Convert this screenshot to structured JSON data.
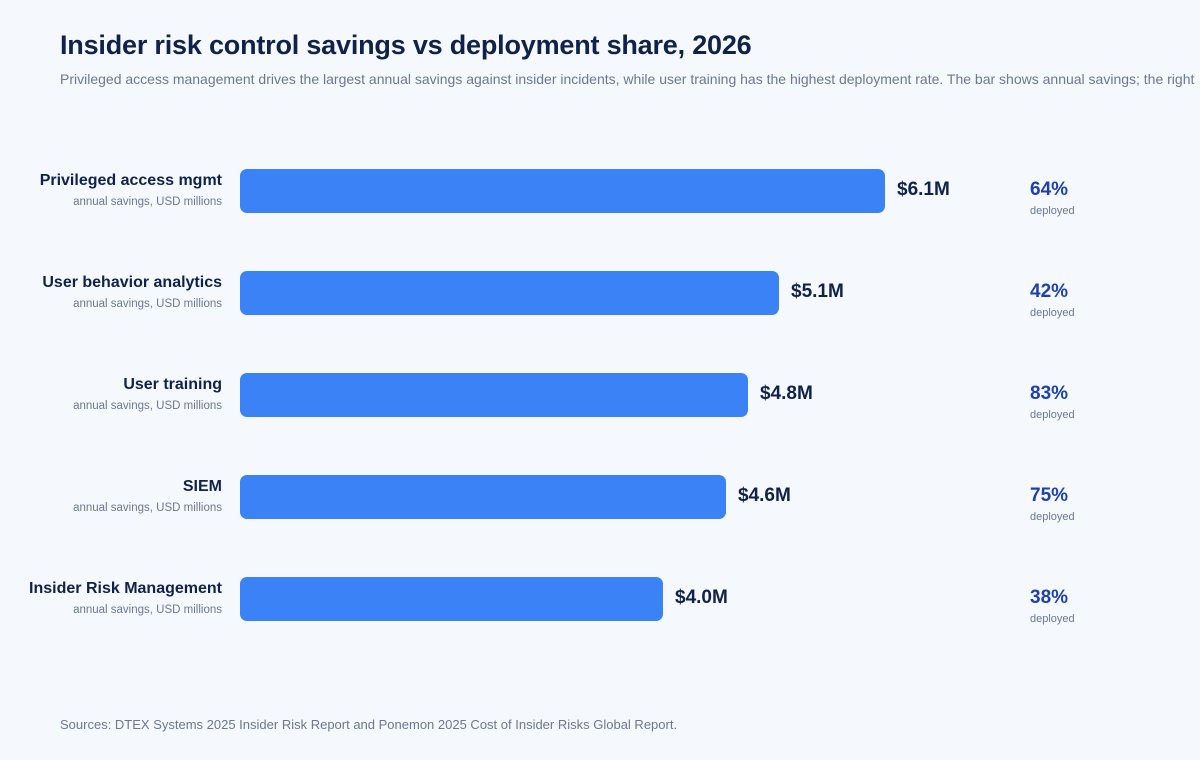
{
  "header": {
    "title": "Insider risk control savings vs deployment share, 2026",
    "subtitle": "Privileged access management drives the largest annual savings against insider incidents, while user training has the highest deployment rate. The bar shows annual savings; the right"
  },
  "footer": {
    "source": "Sources: DTEX Systems 2025 Insider Risk Report and Ponemon 2025 Cost of Insider Risks Global Report."
  },
  "colors": {
    "bar": "#3b82f6",
    "title": "#10214a",
    "percent": "#1e40af",
    "muted": "#6a7890",
    "background": "#f5f9fe"
  },
  "chart_data": {
    "type": "bar",
    "orientation": "horizontal",
    "title": "Insider risk control savings vs deployment share, 2026",
    "xlabel": "annual savings, USD millions",
    "ylabel": "",
    "xlim": [
      0,
      6.1
    ],
    "grid": false,
    "categories": [
      "Privileged access mgmt",
      "User behavior analytics",
      "User training",
      "SIEM",
      "Insider Risk Management"
    ],
    "series": [
      {
        "name": "annual savings, USD millions",
        "values": [
          6.1,
          5.1,
          4.8,
          4.6,
          4.0
        ]
      },
      {
        "name": "deployed (%)",
        "values": [
          64,
          42,
          83,
          75,
          38
        ]
      }
    ],
    "rows": [
      {
        "label": "Privileged access mgmt",
        "sublabel": "annual savings, USD millions",
        "savings": 6.1,
        "savings_label": "$6.1M",
        "deployed_pct": 64,
        "deployed_label": "64%",
        "deployed_caption": "deployed"
      },
      {
        "label": "User behavior analytics",
        "sublabel": "annual savings, USD millions",
        "savings": 5.1,
        "savings_label": "$5.1M",
        "deployed_pct": 42,
        "deployed_label": "42%",
        "deployed_caption": "deployed"
      },
      {
        "label": "User training",
        "sublabel": "annual savings, USD millions",
        "savings": 4.8,
        "savings_label": "$4.8M",
        "deployed_pct": 83,
        "deployed_label": "83%",
        "deployed_caption": "deployed"
      },
      {
        "label": "SIEM",
        "sublabel": "annual savings, USD millions",
        "savings": 4.6,
        "savings_label": "$4.6M",
        "deployed_pct": 75,
        "deployed_label": "75%",
        "deployed_caption": "deployed"
      },
      {
        "label": "Insider Risk Management",
        "sublabel": "annual savings, USD millions",
        "savings": 4.0,
        "savings_label": "$4.0M",
        "deployed_pct": 38,
        "deployed_label": "38%",
        "deployed_caption": "deployed"
      }
    ]
  }
}
